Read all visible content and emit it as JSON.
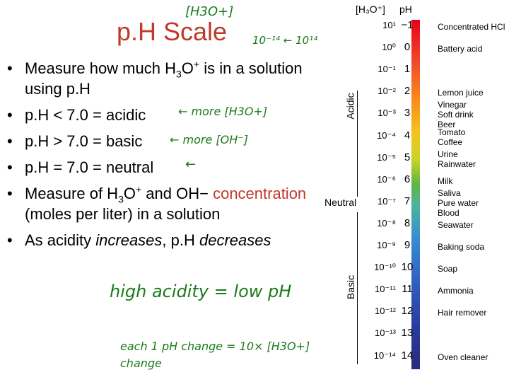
{
  "slide": {
    "title": "p.H Scale",
    "bullets": [
      {
        "pre": "Measure how much H",
        "s1": "3",
        "mid": "O",
        "s2": "+",
        "post": " is in a solution using p.H"
      },
      {
        "text": "p.H < 7.0 = acidic"
      },
      {
        "text": "p.H > 7.0 = basic"
      },
      {
        "text": "p.H = 7.0 = neutral"
      },
      {
        "pre": "Measure of H",
        "s1": "3",
        "mid": "O",
        "s2": "+",
        "post": " and OH−",
        "red": "concentration",
        "end": " (moles per liter) in a solution"
      },
      {
        "pre": "As acidity ",
        "em1": "increases",
        "mid": ", p.H ",
        "em2": "decreases"
      }
    ]
  },
  "annotations": {
    "title_note": "[H3O+]",
    "power_note": "10⁻¹⁴ ← 10¹⁴",
    "acidic_note": "← more [H3O+]",
    "basic_note": "← more [OH⁻]",
    "neutral_note": "←",
    "acidity_note": "high acidity = low pH",
    "change_note": "each 1 pH change = 10× [H3O+] change"
  },
  "scale": {
    "header_conc": "[H₃O⁺]",
    "header_ph": "pH",
    "acidic_label": "Acidic",
    "basic_label": "Basic",
    "neutral_label": "Neutral",
    "rows": [
      {
        "exp": "10¹",
        "ph": "−1",
        "label": "Concentrated HCl"
      },
      {
        "exp": "10⁰",
        "ph": "0",
        "label": "Battery acid"
      },
      {
        "exp": "10⁻¹",
        "ph": "1",
        "label": ""
      },
      {
        "exp": "10⁻²",
        "ph": "2",
        "label": "Lemon juice"
      },
      {
        "exp": "10⁻³",
        "ph": "3",
        "label": "Vinegar\nSoft drink\nBeer"
      },
      {
        "exp": "10⁻⁴",
        "ph": "4",
        "label": "Tomato\nCoffee"
      },
      {
        "exp": "10⁻⁵",
        "ph": "5",
        "label": "Urine\nRainwater"
      },
      {
        "exp": "10⁻⁶",
        "ph": "6",
        "label": "Milk"
      },
      {
        "exp": "10⁻⁷",
        "ph": "7",
        "label": "Saliva\nPure water\nBlood"
      },
      {
        "exp": "10⁻⁸",
        "ph": "8",
        "label": "Seawater"
      },
      {
        "exp": "10⁻⁹",
        "ph": "9",
        "label": "Baking soda"
      },
      {
        "exp": "10⁻¹⁰",
        "ph": "10",
        "label": "Soap"
      },
      {
        "exp": "10⁻¹¹",
        "ph": "11",
        "label": "Ammonia"
      },
      {
        "exp": "10⁻¹²",
        "ph": "12",
        "label": "Hair remover"
      },
      {
        "exp": "10⁻¹³",
        "ph": "13",
        "label": ""
      },
      {
        "exp": "10⁻¹⁴",
        "ph": "14",
        "label": "Oven cleaner"
      }
    ]
  }
}
